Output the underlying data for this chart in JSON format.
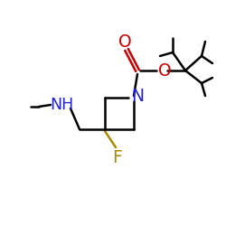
{
  "bg_color": "#ffffff",
  "atom_colors": {
    "N": "#2222cc",
    "O": "#cc0000",
    "F": "#aa8800",
    "C": "#000000"
  },
  "bond_lw": 1.8,
  "label_fontsize": 12.5
}
